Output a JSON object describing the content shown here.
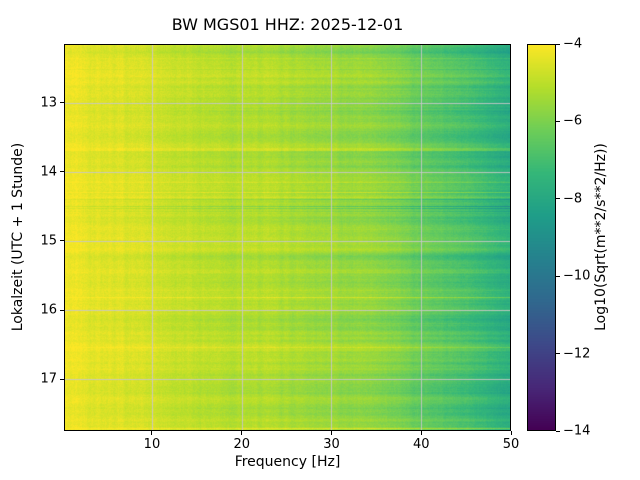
{
  "chart_data": {
    "type": "heatmap",
    "title": "BW MGS01  HHZ: 2025-12-01",
    "xlabel": "Frequency [Hz]",
    "ylabel": "Lokalzeit (UTC + 1 Stunde)",
    "x_range": [
      0.2,
      50
    ],
    "x_ticks": [
      10,
      20,
      30,
      40,
      50
    ],
    "y_range": [
      12.15,
      17.75
    ],
    "y_ticks": [
      13,
      14,
      15,
      16,
      17
    ],
    "y_direction": "down",
    "grid": true,
    "grid_color": "#c8c8c8",
    "colormap": "viridis",
    "colorbar": {
      "label": "Log10(Sqrt(m**2/s**2/Hz))",
      "ticks": [
        -4,
        -6,
        -8,
        -10,
        -12,
        -14
      ],
      "range": [
        -14,
        -4
      ]
    },
    "spectrum_profile": {
      "freqs": [
        0.2,
        3,
        6,
        9,
        12,
        16,
        20,
        25,
        30,
        34,
        37,
        40,
        43,
        46,
        48,
        50
      ],
      "values": [
        -4.25,
        -4.3,
        -4.45,
        -4.65,
        -4.85,
        -5.0,
        -5.15,
        -5.3,
        -5.5,
        -5.75,
        -6.0,
        -6.4,
        -6.7,
        -7.1,
        -7.45,
        -7.8
      ]
    },
    "noise": {
      "row": 0.3,
      "col": 0.12,
      "pixel": 0.17,
      "streak_chance": 0.045,
      "streak_boost": 0.55
    }
  }
}
